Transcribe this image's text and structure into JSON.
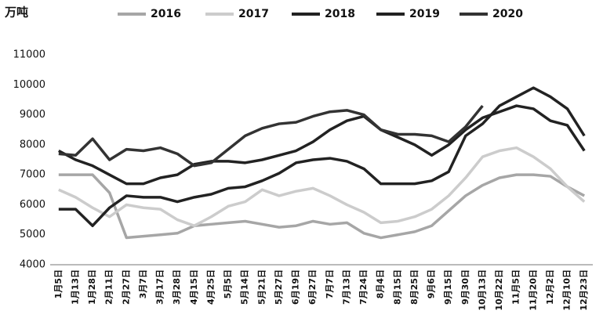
{
  "chart_data": {
    "type": "line",
    "y_label": "万吨",
    "categories": [
      "1月5日",
      "1月13日",
      "1月28日",
      "2月11日",
      "2月27日",
      "3月7日",
      "3月17日",
      "3月28日",
      "4月15日",
      "4月25日",
      "5月5日",
      "5月14日",
      "5月21日",
      "5月27日",
      "6月19日",
      "6月27日",
      "7月7日",
      "7月13日",
      "7月24日",
      "8月4日",
      "8月15日",
      "8月25日",
      "9月6日",
      "9月15日",
      "9月30日",
      "10月13日",
      "10月22日",
      "11月5日",
      "11月20日",
      "12月2日",
      "12月10日",
      "12月23日"
    ],
    "series": [
      {
        "name": "2016",
        "color": "#a6a6a6",
        "values": [
          7000,
          7000,
          7000,
          6400,
          4900,
          4950,
          5000,
          5050,
          5300,
          5350,
          5400,
          5450,
          5350,
          5250,
          5300,
          5450,
          5350,
          5400,
          5050,
          4900,
          5000,
          5100,
          5300,
          5800,
          6300,
          6650,
          6900,
          7000,
          7000,
          6950,
          6600,
          6300
        ]
      },
      {
        "name": "2017",
        "color": "#cccccc",
        "values": [
          6500,
          6250,
          5900,
          5600,
          6000,
          5900,
          5850,
          5500,
          5300,
          5600,
          5950,
          6100,
          6500,
          6300,
          6450,
          6550,
          6300,
          6000,
          5750,
          5400,
          5450,
          5600,
          5850,
          6300,
          6900,
          7600,
          7800,
          7900,
          7600,
          7200,
          6600,
          6100
        ]
      },
      {
        "name": "2018",
        "color": "#222222",
        "values": [
          7800,
          7500,
          7300,
          7000,
          6700,
          6700,
          6900,
          7000,
          7350,
          7450,
          7450,
          7400,
          7500,
          7650,
          7800,
          8100,
          8500,
          8800,
          8950,
          8500,
          8250,
          8000,
          7650,
          8000,
          8500,
          8900,
          9100,
          9300,
          9200,
          8800,
          8650,
          7800
        ]
      },
      {
        "name": "2019",
        "color": "#222222",
        "values": [
          5850,
          5850,
          5300,
          5900,
          6300,
          6250,
          6250,
          6100,
          6250,
          6350,
          6550,
          6600,
          6800,
          7050,
          7400,
          7500,
          7550,
          7450,
          7200,
          6700,
          6700,
          6700,
          6800,
          7100,
          8300,
          8700,
          9300,
          9600,
          9900,
          9600,
          9200,
          8300
        ]
      },
      {
        "name": "2020",
        "color": "#333333",
        "values": [
          7700,
          7650,
          8200,
          7500,
          7850,
          7800,
          7900,
          7700,
          7300,
          7400,
          7850,
          8300,
          8550,
          8700,
          8750,
          8950,
          9100,
          9150,
          9000,
          8500,
          8350,
          8350,
          8300,
          8100,
          8600,
          9300,
          null,
          null,
          null,
          null,
          null,
          null
        ]
      }
    ],
    "ylim": [
      4000,
      11000
    ],
    "yticks": [
      4000,
      5000,
      6000,
      7000,
      8000,
      9000,
      10000,
      11000
    ],
    "grid": false
  }
}
